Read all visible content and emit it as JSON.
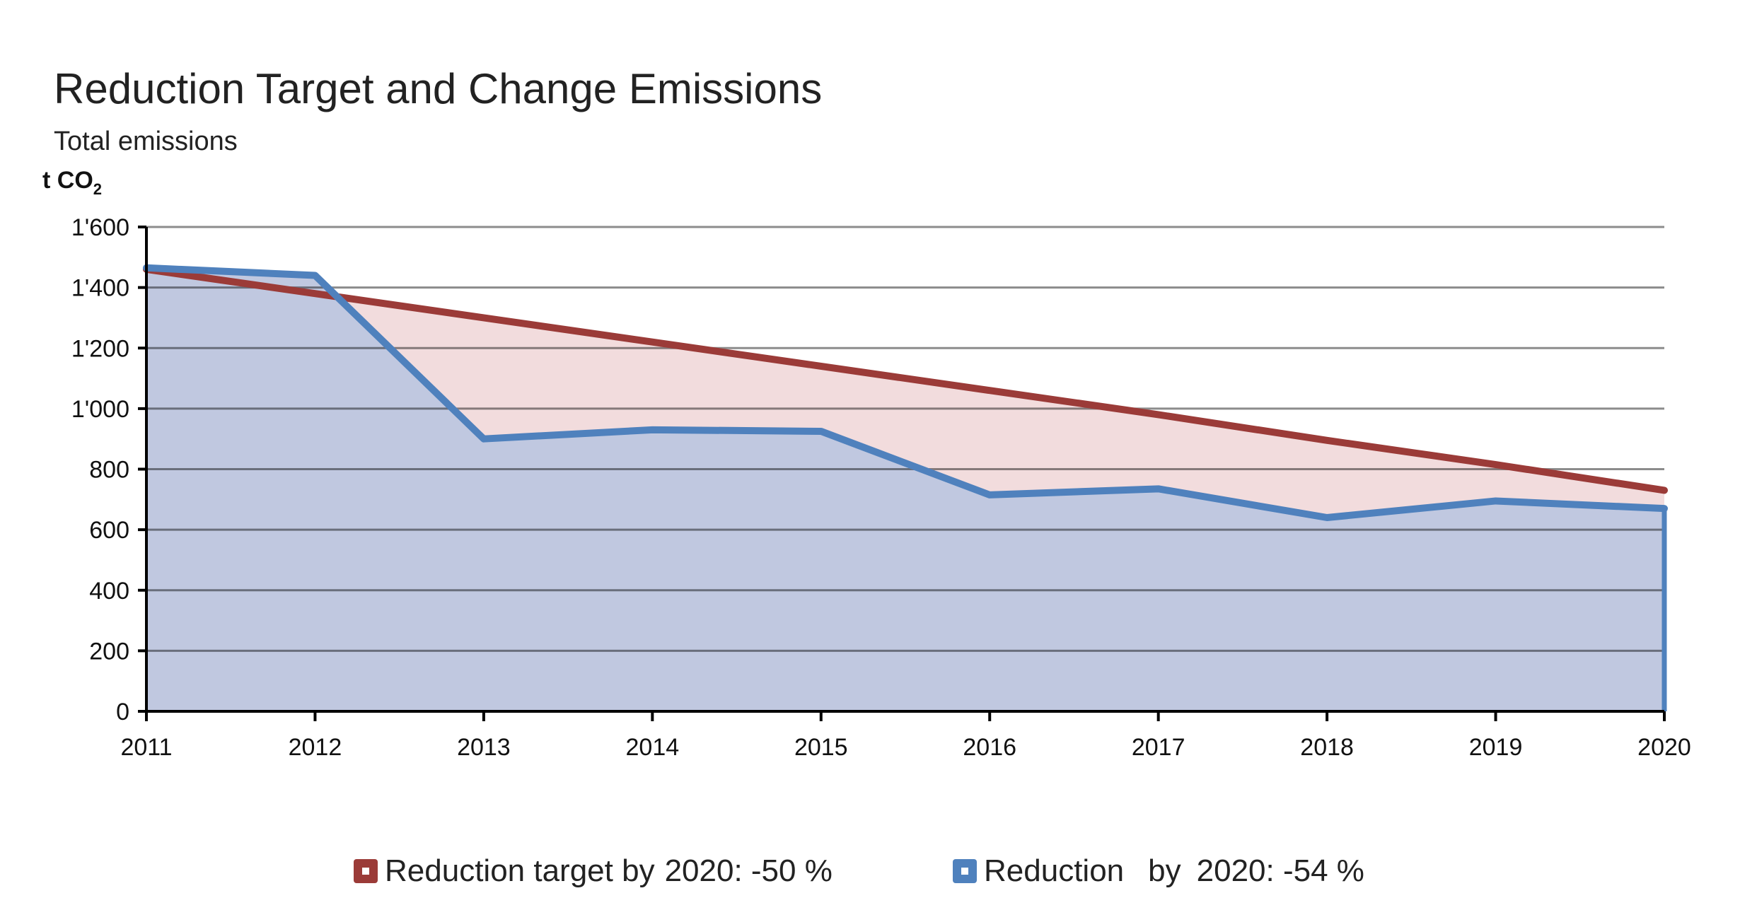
{
  "chart_data": {
    "type": "area",
    "title": "Reduction Target and Change Emissions",
    "subtitle": "Total emissions",
    "ylabel": "t CO",
    "ylabel_subscript": "2",
    "xlabel": "",
    "x": [
      "2011",
      "2012",
      "2013",
      "2014",
      "2015",
      "2016",
      "2017",
      "2018",
      "2019",
      "2020"
    ],
    "y_ticks": [
      "0",
      "200",
      "400",
      "600",
      "800",
      "1'000",
      "1'200",
      "1'400",
      "1'600"
    ],
    "ylim": [
      0,
      1600
    ],
    "grid": true,
    "legend_position": "bottom-center",
    "series": [
      {
        "name": "Reduction target by 2020: -50 %",
        "legend_parts": [
          "Reduction target by",
          "2020: -50 %"
        ],
        "values": [
          1460,
          1380,
          1300,
          1220,
          1140,
          1060,
          980,
          895,
          815,
          730
        ],
        "line_color": "#9b3b38",
        "fill_color": "#f2dcdd"
      },
      {
        "name": "Reduction by 2020: -54 %",
        "legend_parts": [
          "Reduction",
          "by",
          "2020: -54 %"
        ],
        "values": [
          1465,
          1440,
          900,
          930,
          925,
          715,
          735,
          640,
          695,
          670
        ],
        "line_color": "#4f81bd",
        "fill_color": "#c0c8e0"
      }
    ]
  }
}
